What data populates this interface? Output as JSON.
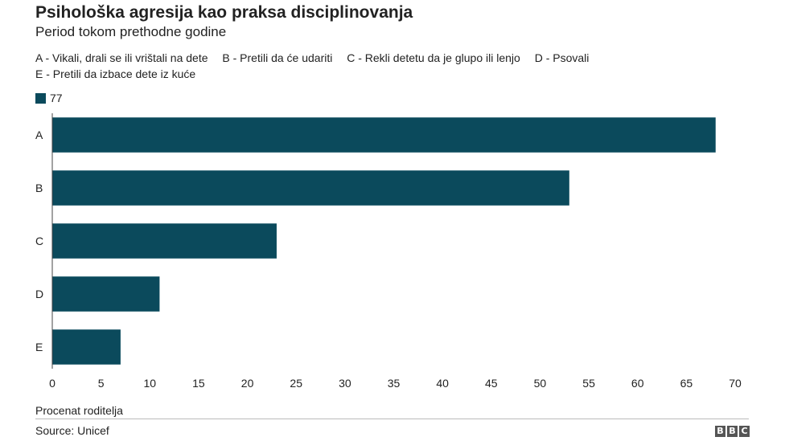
{
  "header": {
    "title": "Psihološka agresija kao praksa disciplinovanja",
    "subtitle": "Period tokom prethodne godine"
  },
  "category_legend": [
    "A - Vikali, drali se ili vrištali na dete",
    "B - Pretili da će udariti",
    "C - Rekli detetu da je glupo ili lenjo",
    "D - Psovali",
    "E - Pretili da izbace dete iz kuće"
  ],
  "footer": {
    "source": "Source: Unicef",
    "logo_letters": [
      "B",
      "B",
      "C"
    ]
  },
  "colors": {
    "bar": "#0b4a5c",
    "tick_text": "#222222"
  },
  "chart_data": {
    "type": "bar",
    "orientation": "horizontal",
    "categories": [
      "A",
      "B",
      "C",
      "D",
      "E"
    ],
    "series": [
      {
        "name": "77",
        "values": [
          68,
          53,
          23,
          11,
          7
        ]
      }
    ],
    "xlabel": "Procenat roditelja",
    "xlim": [
      0,
      70
    ],
    "xticks": [
      0,
      5,
      10,
      15,
      20,
      25,
      30,
      35,
      40,
      45,
      50,
      55,
      60,
      65,
      70
    ],
    "grid": false,
    "legend_position": "top-left"
  }
}
